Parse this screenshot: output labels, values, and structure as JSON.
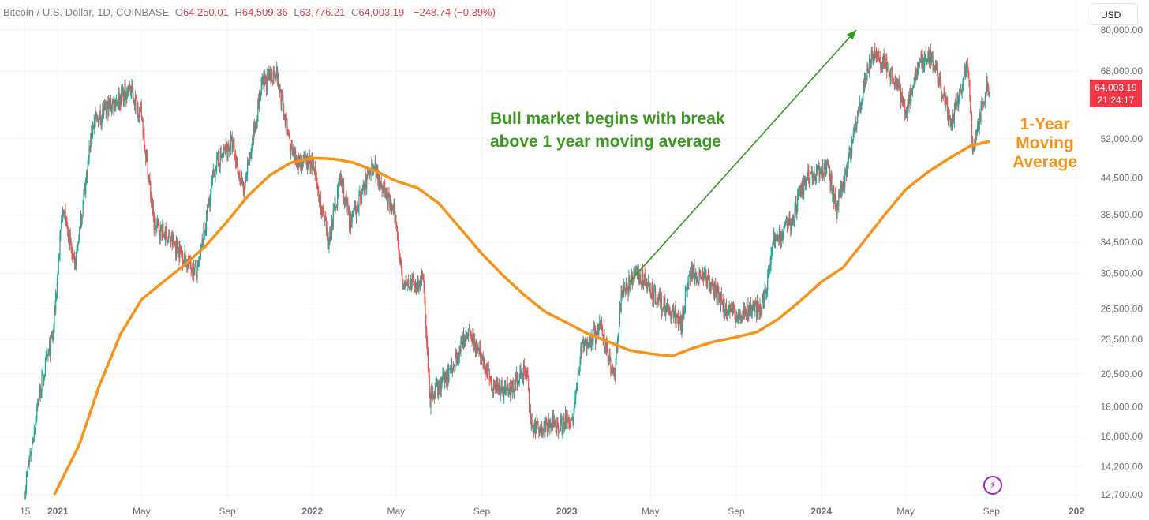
{
  "header": {
    "symbol": "Bitcoin / U.S. Dollar, 1D, COINBASE",
    "open_label": "O",
    "open": "64,250.01",
    "high_label": "H",
    "high": "64,509.36",
    "low_label": "L",
    "low": "63,776.21",
    "close_label": "C",
    "close": "64,003.19",
    "change": "−248.74 (−0.39%)"
  },
  "currency_button": "USD",
  "price_tag": {
    "price": "64,003.19",
    "countdown": "21:24:17"
  },
  "annotations": {
    "bull_market": "Bull market begins with break above 1 year moving average",
    "moving_average_label": "1-Year Moving Average"
  },
  "colors": {
    "up": "#26a69a",
    "down": "#ef5350",
    "moving_average": "#f7931a",
    "annotation_green": "#3b9a1e",
    "price_tag": "#f23645"
  },
  "icons": {
    "flash": "lightning-icon"
  },
  "chart_data": {
    "type": "candlestick",
    "scale": "log",
    "ylim": [
      12700,
      80000
    ],
    "xlim": [
      "2020-10-10",
      "2025-01-10"
    ],
    "y_tick_labels": [
      "80,000.00",
      "68,000.00",
      "52,000.00",
      "44,500.00",
      "38,500.00",
      "34,500.00",
      "30,500.00",
      "26,500.00",
      "23,500.00",
      "20,500.00",
      "18,000.00",
      "16,000.00",
      "14,200.00",
      "12,700.00"
    ],
    "x_tick_labels": [
      {
        "label": "15",
        "date": "2020-11-15"
      },
      {
        "label": "2021",
        "date": "2021-01-01"
      },
      {
        "label": "May",
        "date": "2021-05-01"
      },
      {
        "label": "Sep",
        "date": "2021-09-01"
      },
      {
        "label": "2022",
        "date": "2022-01-01"
      },
      {
        "label": "May",
        "date": "2022-05-01"
      },
      {
        "label": "Sep",
        "date": "2022-09-01"
      },
      {
        "label": "2023",
        "date": "2023-01-01"
      },
      {
        "label": "May",
        "date": "2023-05-01"
      },
      {
        "label": "Sep",
        "date": "2023-09-01"
      },
      {
        "label": "2024",
        "date": "2024-01-01"
      },
      {
        "label": "May",
        "date": "2024-05-01"
      },
      {
        "label": "Sep",
        "date": "2024-09-01"
      },
      {
        "label": "202",
        "date": "2025-01-01"
      }
    ],
    "price_path": [
      [
        "2020-11-15",
        13000
      ],
      [
        "2020-12-05",
        18800
      ],
      [
        "2020-12-25",
        24000
      ],
      [
        "2021-01-08",
        40000
      ],
      [
        "2021-01-25",
        31000
      ],
      [
        "2021-02-20",
        55000
      ],
      [
        "2021-03-15",
        59000
      ],
      [
        "2021-04-14",
        63500
      ],
      [
        "2021-05-01",
        57000
      ],
      [
        "2021-05-19",
        37000
      ],
      [
        "2021-06-10",
        35000
      ],
      [
        "2021-07-20",
        30500
      ],
      [
        "2021-08-15",
        47000
      ],
      [
        "2021-09-07",
        51000
      ],
      [
        "2021-09-25",
        42000
      ],
      [
        "2021-10-20",
        64000
      ],
      [
        "2021-11-10",
        68000
      ],
      [
        "2021-12-04",
        48000
      ],
      [
        "2022-01-01",
        47000
      ],
      [
        "2022-01-24",
        34500
      ],
      [
        "2022-02-10",
        44500
      ],
      [
        "2022-02-25",
        37000
      ],
      [
        "2022-03-29",
        47500
      ],
      [
        "2022-04-30",
        38000
      ],
      [
        "2022-05-12",
        29000
      ],
      [
        "2022-06-10",
        29500
      ],
      [
        "2022-06-18",
        18500
      ],
      [
        "2022-07-15",
        20500
      ],
      [
        "2022-08-14",
        24500
      ],
      [
        "2022-09-15",
        19800
      ],
      [
        "2022-10-10",
        19200
      ],
      [
        "2022-11-05",
        21000
      ],
      [
        "2022-11-10",
        16500
      ],
      [
        "2022-12-20",
        16800
      ],
      [
        "2023-01-10",
        17200
      ],
      [
        "2023-01-22",
        22800
      ],
      [
        "2023-02-20",
        24500
      ],
      [
        "2023-03-10",
        20100
      ],
      [
        "2023-03-20",
        28000
      ],
      [
        "2023-04-14",
        30500
      ],
      [
        "2023-05-10",
        27500
      ],
      [
        "2023-06-15",
        25200
      ],
      [
        "2023-06-25",
        30500
      ],
      [
        "2023-07-15",
        30200
      ],
      [
        "2023-08-17",
        26500
      ],
      [
        "2023-09-10",
        25800
      ],
      [
        "2023-10-10",
        27000
      ],
      [
        "2023-10-24",
        34500
      ],
      [
        "2023-11-20",
        37500
      ],
      [
        "2023-12-08",
        44000
      ],
      [
        "2024-01-10",
        46500
      ],
      [
        "2024-01-23",
        39500
      ],
      [
        "2024-02-10",
        48000
      ],
      [
        "2024-02-28",
        62000
      ],
      [
        "2024-03-14",
        73000
      ],
      [
        "2024-04-01",
        70000
      ],
      [
        "2024-04-20",
        64000
      ],
      [
        "2024-05-01",
        58000
      ],
      [
        "2024-05-21",
        71000
      ],
      [
        "2024-06-07",
        71500
      ],
      [
        "2024-06-25",
        61000
      ],
      [
        "2024-07-05",
        55000
      ],
      [
        "2024-07-29",
        69500
      ],
      [
        "2024-08-05",
        50000
      ],
      [
        "2024-08-25",
        64000
      ],
      [
        "2024-08-30",
        64003.19
      ]
    ],
    "series": [
      {
        "name": "1-Year Moving Average",
        "points": [
          [
            "2020-12-27",
            12700
          ],
          [
            "2021-02-01",
            15500
          ],
          [
            "2021-03-01",
            19500
          ],
          [
            "2021-04-01",
            24000
          ],
          [
            "2021-05-01",
            27500
          ],
          [
            "2021-06-01",
            29500
          ],
          [
            "2021-07-01",
            31500
          ],
          [
            "2021-08-01",
            34000
          ],
          [
            "2021-09-01",
            37500
          ],
          [
            "2021-10-01",
            41500
          ],
          [
            "2021-11-01",
            45000
          ],
          [
            "2021-12-01",
            47300
          ],
          [
            "2022-01-01",
            48200
          ],
          [
            "2022-02-01",
            48000
          ],
          [
            "2022-03-01",
            47300
          ],
          [
            "2022-04-01",
            45800
          ],
          [
            "2022-05-01",
            44000
          ],
          [
            "2022-06-01",
            42800
          ],
          [
            "2022-07-01",
            40300
          ],
          [
            "2022-08-01",
            36500
          ],
          [
            "2022-09-01",
            33000
          ],
          [
            "2022-10-01",
            30300
          ],
          [
            "2022-11-01",
            28000
          ],
          [
            "2022-12-01",
            26200
          ],
          [
            "2023-01-01",
            25100
          ],
          [
            "2023-02-01",
            24000
          ],
          [
            "2023-03-01",
            23300
          ],
          [
            "2023-04-01",
            22500
          ],
          [
            "2023-05-01",
            22200
          ],
          [
            "2023-06-01",
            22000
          ],
          [
            "2023-07-01",
            22700
          ],
          [
            "2023-08-01",
            23300
          ],
          [
            "2023-09-01",
            23700
          ],
          [
            "2023-10-01",
            24200
          ],
          [
            "2023-11-01",
            25500
          ],
          [
            "2023-12-01",
            27300
          ],
          [
            "2024-01-01",
            29500
          ],
          [
            "2024-02-01",
            31200
          ],
          [
            "2024-03-01",
            34500
          ],
          [
            "2024-04-01",
            38500
          ],
          [
            "2024-05-01",
            42500
          ],
          [
            "2024-06-01",
            45500
          ],
          [
            "2024-07-01",
            48000
          ],
          [
            "2024-08-01",
            50500
          ],
          [
            "2024-08-30",
            51500
          ]
        ]
      }
    ],
    "arrow": {
      "from": [
        "2023-04-01",
        29500
      ],
      "to": [
        "2024-02-20",
        80000
      ]
    }
  }
}
